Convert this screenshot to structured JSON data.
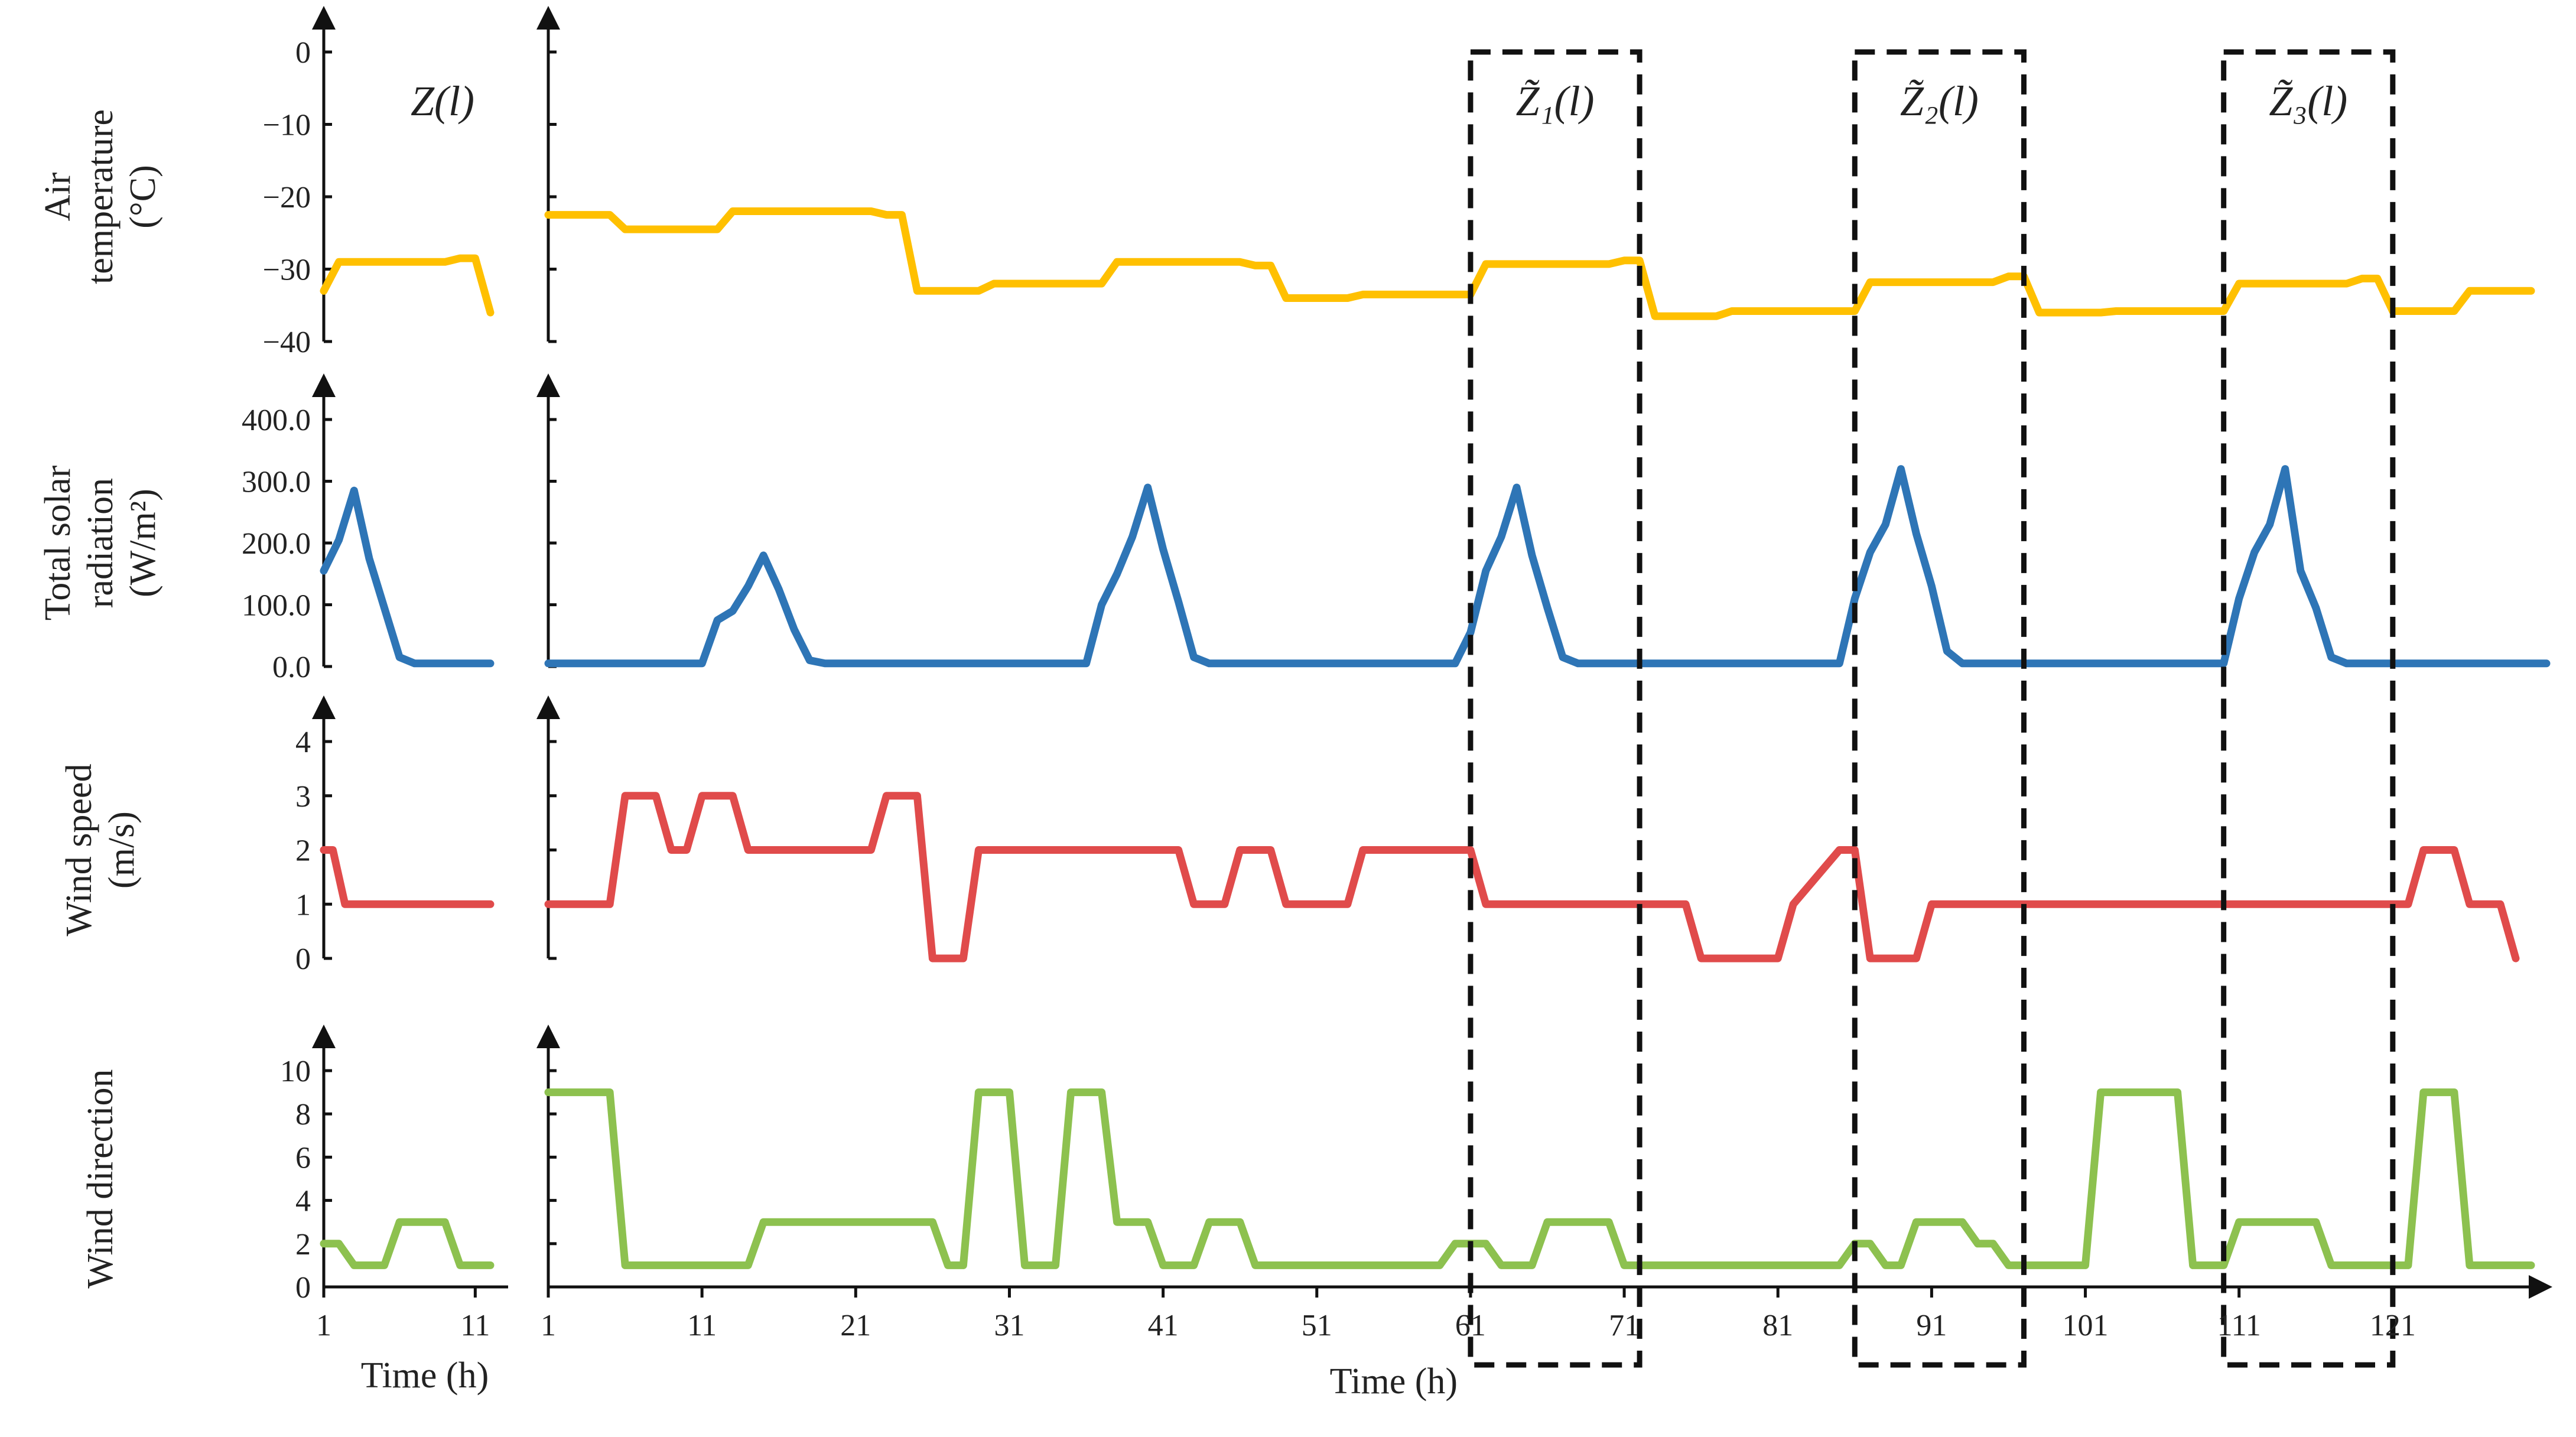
{
  "chart_data": {
    "type": "line",
    "colors": {
      "temperature": "#FFC000",
      "radiation": "#2E75B6",
      "wind_speed": "#E04B4B",
      "wind_direction": "#8DC14F"
    },
    "xlabel_left": "Time (h)",
    "xlabel_right": "Time (h)",
    "x_ticks_left": [
      "1",
      "11"
    ],
    "x_ticks_right": [
      "1",
      "11",
      "21",
      "31",
      "41",
      "51",
      "61",
      "71",
      "81",
      "91",
      "101",
      "111",
      "121"
    ],
    "xlim_left": [
      1,
      12
    ],
    "xlim_right": [
      1,
      131
    ],
    "windows": [
      {
        "label": "Z(l)",
        "x": null
      },
      {
        "label": "Z̃₁(l)",
        "x": [
          61,
          72
        ]
      },
      {
        "label": "Z̃₂(l)",
        "x": [
          86,
          97
        ]
      },
      {
        "label": "Z̃₃(l)",
        "x": [
          110,
          121
        ]
      }
    ],
    "panels": [
      {
        "id": "temperature",
        "ylabel": [
          "Air",
          "temperature",
          "(°C)"
        ],
        "ylim": [
          -40,
          0
        ],
        "yticks": [
          "0",
          "−10",
          "−20",
          "−30",
          "−40"
        ],
        "left": [
          [
            1,
            -33
          ],
          [
            2,
            -29
          ],
          [
            3,
            -29
          ],
          [
            4,
            -29
          ],
          [
            5,
            -29
          ],
          [
            6,
            -29
          ],
          [
            7,
            -29
          ],
          [
            8,
            -29
          ],
          [
            9,
            -29
          ],
          [
            10,
            -28.5
          ],
          [
            11,
            -28.5
          ],
          [
            12,
            -36
          ]
        ],
        "right": [
          [
            1,
            -22.5
          ],
          [
            5,
            -22.5
          ],
          [
            6,
            -24.5
          ],
          [
            12,
            -24.5
          ],
          [
            13,
            -22
          ],
          [
            22,
            -22
          ],
          [
            23,
            -22.5
          ],
          [
            24,
            -22.5
          ],
          [
            25,
            -33
          ],
          [
            29,
            -33
          ],
          [
            30,
            -32
          ],
          [
            37,
            -32
          ],
          [
            38,
            -29
          ],
          [
            46,
            -29
          ],
          [
            47,
            -29.5
          ],
          [
            48,
            -29.5
          ],
          [
            49,
            -34
          ],
          [
            53,
            -34
          ],
          [
            54,
            -33.5
          ],
          [
            61,
            -33.5
          ],
          [
            62,
            -29.3
          ],
          [
            70,
            -29.3
          ],
          [
            71,
            -28.8
          ],
          [
            72,
            -28.8
          ],
          [
            73,
            -36.5
          ],
          [
            77,
            -36.5
          ],
          [
            78,
            -35.8
          ],
          [
            86,
            -35.8
          ],
          [
            87,
            -31.8
          ],
          [
            95,
            -31.8
          ],
          [
            96,
            -31
          ],
          [
            97,
            -31
          ],
          [
            98,
            -36
          ],
          [
            102,
            -36
          ],
          [
            103,
            -35.8
          ],
          [
            110,
            -35.8
          ],
          [
            111,
            -32
          ],
          [
            118,
            -32
          ],
          [
            119,
            -31.3
          ],
          [
            120,
            -31.3
          ],
          [
            121,
            -35.8
          ],
          [
            125,
            -35.8
          ],
          [
            126,
            -33
          ],
          [
            130,
            -33
          ]
        ]
      },
      {
        "id": "radiation",
        "ylabel": [
          "Total solar",
          "radiation",
          "(W/m²)"
        ],
        "ylim": [
          0,
          400
        ],
        "yticks": [
          "400.0",
          "300.0",
          "200.0",
          "100.0",
          "0.0"
        ],
        "left": [
          [
            1,
            155
          ],
          [
            2,
            205
          ],
          [
            3,
            285
          ],
          [
            4,
            175
          ],
          [
            5,
            95
          ],
          [
            6,
            15
          ],
          [
            7,
            5
          ],
          [
            8,
            5
          ],
          [
            9,
            5
          ],
          [
            10,
            5
          ],
          [
            11,
            5
          ],
          [
            12,
            5
          ]
        ],
        "right": [
          [
            1,
            5
          ],
          [
            11,
            5
          ],
          [
            12,
            75
          ],
          [
            13,
            90
          ],
          [
            14,
            130
          ],
          [
            15,
            180
          ],
          [
            16,
            125
          ],
          [
            17,
            60
          ],
          [
            18,
            10
          ],
          [
            19,
            5
          ],
          [
            36,
            5
          ],
          [
            37,
            100
          ],
          [
            38,
            150
          ],
          [
            39,
            210
          ],
          [
            40,
            290
          ],
          [
            41,
            190
          ],
          [
            42,
            105
          ],
          [
            43,
            15
          ],
          [
            44,
            5
          ],
          [
            60,
            5
          ],
          [
            61,
            55
          ],
          [
            62,
            155
          ],
          [
            63,
            210
          ],
          [
            64,
            290
          ],
          [
            65,
            180
          ],
          [
            66,
            95
          ],
          [
            67,
            15
          ],
          [
            68,
            5
          ],
          [
            85,
            5
          ],
          [
            86,
            110
          ],
          [
            87,
            185
          ],
          [
            88,
            230
          ],
          [
            89,
            320
          ],
          [
            90,
            215
          ],
          [
            91,
            130
          ],
          [
            92,
            25
          ],
          [
            93,
            5
          ],
          [
            110,
            5
          ],
          [
            111,
            110
          ],
          [
            112,
            185
          ],
          [
            113,
            230
          ],
          [
            114,
            320
          ],
          [
            115,
            155
          ],
          [
            116,
            95
          ],
          [
            117,
            15
          ],
          [
            118,
            5
          ],
          [
            131,
            5
          ]
        ]
      },
      {
        "id": "wind_speed",
        "ylabel": [
          "Wind speed",
          "(m/s)"
        ],
        "ylim": [
          0,
          4
        ],
        "yticks": [
          "4",
          "3",
          "2",
          "1",
          "0"
        ],
        "left": [
          [
            1,
            2
          ],
          [
            1.6,
            2
          ],
          [
            2.4,
            1
          ],
          [
            12,
            1
          ]
        ],
        "right": [
          [
            1,
            1
          ],
          [
            5,
            1
          ],
          [
            6,
            3
          ],
          [
            8,
            3
          ],
          [
            9,
            2
          ],
          [
            10,
            2
          ],
          [
            11,
            3
          ],
          [
            13,
            3
          ],
          [
            14,
            2
          ],
          [
            22,
            2
          ],
          [
            23,
            3
          ],
          [
            25,
            3
          ],
          [
            26,
            0
          ],
          [
            28,
            0
          ],
          [
            29,
            2
          ],
          [
            42,
            2
          ],
          [
            43,
            1
          ],
          [
            45,
            1
          ],
          [
            46,
            2
          ],
          [
            48,
            2
          ],
          [
            49,
            1
          ],
          [
            53,
            1
          ],
          [
            54,
            2
          ],
          [
            61,
            2
          ],
          [
            62,
            1
          ],
          [
            75,
            1
          ],
          [
            76,
            0
          ],
          [
            81,
            0
          ],
          [
            82,
            1
          ],
          [
            85,
            2
          ],
          [
            86,
            2
          ],
          [
            87,
            0
          ],
          [
            90,
            0
          ],
          [
            91,
            1
          ],
          [
            122,
            1
          ],
          [
            123,
            2
          ],
          [
            125,
            2
          ],
          [
            126,
            1
          ],
          [
            128,
            1
          ],
          [
            129,
            0
          ]
        ]
      },
      {
        "id": "wind_direction",
        "ylabel": [
          "Wind direction"
        ],
        "ylim": [
          0,
          10
        ],
        "yticks": [
          "10",
          "8",
          "6",
          "4",
          "2",
          "0"
        ],
        "left": [
          [
            1,
            2
          ],
          [
            2,
            2
          ],
          [
            3,
            1
          ],
          [
            4,
            1
          ],
          [
            5,
            1
          ],
          [
            6,
            3
          ],
          [
            9,
            3
          ],
          [
            10,
            1
          ],
          [
            12,
            1
          ]
        ],
        "right": [
          [
            1,
            9
          ],
          [
            5,
            9
          ],
          [
            6,
            1
          ],
          [
            14,
            1
          ],
          [
            15,
            3
          ],
          [
            26,
            3
          ],
          [
            27,
            1
          ],
          [
            28,
            1
          ],
          [
            29,
            9
          ],
          [
            31,
            9
          ],
          [
            32,
            1
          ],
          [
            34,
            1
          ],
          [
            35,
            9
          ],
          [
            37,
            9
          ],
          [
            38,
            3
          ],
          [
            40,
            3
          ],
          [
            41,
            1
          ],
          [
            43,
            1
          ],
          [
            44,
            3
          ],
          [
            46,
            3
          ],
          [
            47,
            1
          ],
          [
            59,
            1
          ],
          [
            60,
            2
          ],
          [
            62,
            2
          ],
          [
            63,
            1
          ],
          [
            65,
            1
          ],
          [
            66,
            3
          ],
          [
            70,
            3
          ],
          [
            71,
            1
          ],
          [
            85,
            1
          ],
          [
            86,
            2
          ],
          [
            87,
            2
          ],
          [
            88,
            1
          ],
          [
            89,
            1
          ],
          [
            90,
            3
          ],
          [
            93,
            3
          ],
          [
            94,
            2
          ],
          [
            95,
            2
          ],
          [
            96,
            1
          ],
          [
            101,
            1
          ],
          [
            102,
            9
          ],
          [
            107,
            9
          ],
          [
            108,
            1
          ],
          [
            110,
            1
          ],
          [
            111,
            3
          ],
          [
            116,
            3
          ],
          [
            117,
            1
          ],
          [
            122,
            1
          ],
          [
            123,
            9
          ],
          [
            125,
            9
          ],
          [
            126,
            1
          ],
          [
            130,
            1
          ]
        ]
      }
    ]
  }
}
